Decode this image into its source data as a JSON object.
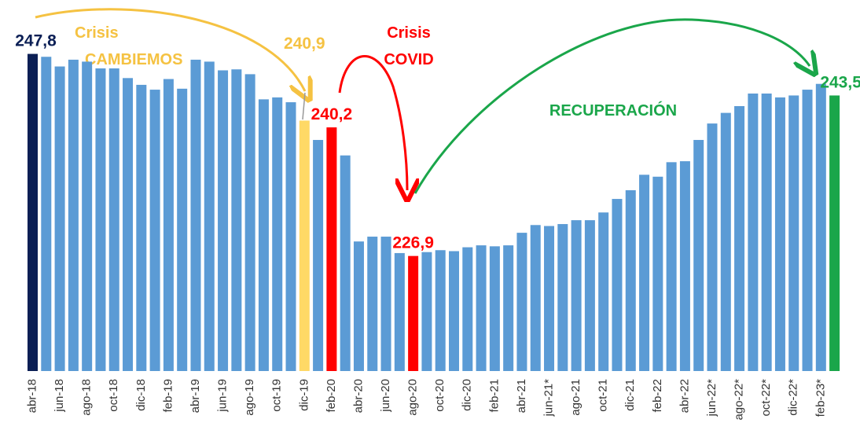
{
  "chart_data": {
    "type": "bar",
    "annotations": [
      {
        "lines": [
          "Crisis",
          "CAMBIEMOS"
        ],
        "color": "#f5c242"
      },
      {
        "lines": [
          "Crisis",
          "COVID"
        ],
        "color": "#ff0000"
      },
      {
        "lines": [
          "RECUPERACIÓN"
        ],
        "color": "#1aa64a"
      }
    ],
    "categories": [
      "abr-18",
      null,
      "jun-18",
      null,
      "ago-18",
      null,
      "oct-18",
      null,
      "dic-18",
      null,
      "feb-19",
      null,
      "abr-19",
      null,
      "jun-19",
      null,
      "ago-19",
      null,
      "oct-19",
      null,
      "dic-19",
      null,
      "feb-20",
      null,
      "abr-20",
      null,
      "jun-20",
      null,
      "ago-20",
      null,
      "oct-20",
      null,
      "dic-20",
      null,
      "feb-21",
      null,
      "abr-21",
      null,
      "jun-21*",
      null,
      "ago-21",
      null,
      "oct-21",
      null,
      "dic-21",
      null,
      "feb-22",
      null,
      "abr-22",
      null,
      "jun-22*",
      null,
      "ago-22*",
      null,
      "oct-22*",
      null,
      "dic-22*",
      null,
      "feb-23*",
      null
    ],
    "values": [
      247.8,
      247.5,
      246.5,
      247.2,
      247.0,
      246.3,
      246.3,
      245.3,
      244.6,
      244.1,
      245.2,
      244.2,
      247.2,
      247.0,
      246.1,
      246.2,
      245.7,
      243.1,
      243.3,
      242.8,
      240.9,
      238.9,
      240.2,
      237.3,
      228.4,
      228.9,
      228.9,
      227.2,
      226.9,
      227.3,
      227.5,
      227.4,
      227.8,
      228.0,
      227.9,
      228.0,
      229.3,
      230.1,
      230.0,
      230.2,
      230.6,
      230.6,
      231.4,
      232.8,
      233.7,
      235.3,
      235.1,
      236.6,
      236.7,
      238.9,
      240.6,
      241.7,
      242.4,
      243.7,
      243.7,
      243.3,
      243.5,
      244.1,
      244.7,
      243.5
    ],
    "value_labels": [
      "247,8",
      null,
      null,
      null,
      null,
      null,
      null,
      null,
      null,
      null,
      null,
      null,
      null,
      null,
      null,
      null,
      null,
      null,
      null,
      null,
      "240,9",
      null,
      "240,2",
      null,
      null,
      null,
      null,
      null,
      "226,9",
      null,
      null,
      null,
      null,
      null,
      null,
      null,
      null,
      null,
      null,
      null,
      null,
      null,
      null,
      null,
      null,
      null,
      null,
      null,
      null,
      null,
      null,
      null,
      null,
      null,
      null,
      null,
      null,
      null,
      null,
      "243,5"
    ],
    "colors": [
      "#0b1f55",
      "#5b9bd5",
      "#5b9bd5",
      "#5b9bd5",
      "#5b9bd5",
      "#5b9bd5",
      "#5b9bd5",
      "#5b9bd5",
      "#5b9bd5",
      "#5b9bd5",
      "#5b9bd5",
      "#5b9bd5",
      "#5b9bd5",
      "#5b9bd5",
      "#5b9bd5",
      "#5b9bd5",
      "#5b9bd5",
      "#5b9bd5",
      "#5b9bd5",
      "#5b9bd5",
      "#ffd966",
      "#5b9bd5",
      "#ff0000",
      "#5b9bd5",
      "#5b9bd5",
      "#5b9bd5",
      "#5b9bd5",
      "#5b9bd5",
      "#ff0000",
      "#5b9bd5",
      "#5b9bd5",
      "#5b9bd5",
      "#5b9bd5",
      "#5b9bd5",
      "#5b9bd5",
      "#5b9bd5",
      "#5b9bd5",
      "#5b9bd5",
      "#5b9bd5",
      "#5b9bd5",
      "#5b9bd5",
      "#5b9bd5",
      "#5b9bd5",
      "#5b9bd5",
      "#5b9bd5",
      "#5b9bd5",
      "#5b9bd5",
      "#5b9bd5",
      "#5b9bd5",
      "#5b9bd5",
      "#5b9bd5",
      "#5b9bd5",
      "#5b9bd5",
      "#5b9bd5",
      "#5b9bd5",
      "#5b9bd5",
      "#5b9bd5",
      "#5b9bd5",
      "#5b9bd5",
      "#1aa64a"
    ],
    "label_colors": [
      "#0b1f55",
      null,
      null,
      null,
      null,
      null,
      null,
      null,
      null,
      null,
      null,
      null,
      null,
      null,
      null,
      null,
      null,
      null,
      null,
      null,
      "#f5c242",
      null,
      "#ff0000",
      null,
      null,
      null,
      null,
      null,
      "#ff0000",
      null,
      null,
      null,
      null,
      null,
      null,
      null,
      null,
      null,
      null,
      null,
      null,
      null,
      null,
      null,
      null,
      null,
      null,
      null,
      null,
      null,
      null,
      null,
      null,
      null,
      null,
      null,
      null,
      null,
      null,
      "#1aa64a"
    ],
    "ylim": [
      215,
      250
    ]
  }
}
